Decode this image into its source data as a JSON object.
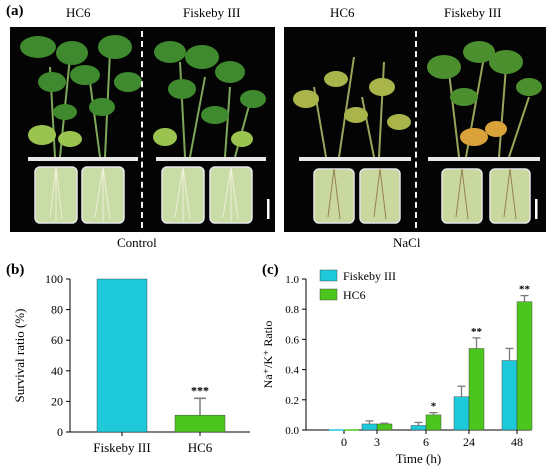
{
  "panels": {
    "a": {
      "letter": "(a)",
      "groups": [
        {
          "label": "Control",
          "plants": [
            "HC6",
            "Fiskeby III"
          ]
        },
        {
          "label": "NaCl",
          "plants": [
            "HC6",
            "Fiskeby III"
          ]
        }
      ]
    },
    "b": {
      "letter": "(b)"
    },
    "c": {
      "letter": "(c)"
    }
  },
  "colors": {
    "fiskeby": "#1ec9da",
    "hc6": "#4dc51f",
    "error_bar": "#7a7a7a",
    "photo_bg": "#040404"
  },
  "chart_data": [
    {
      "panel": "b",
      "type": "bar",
      "categories": [
        "Fiskeby III",
        "HC6"
      ],
      "values": [
        100,
        11
      ],
      "errors": [
        0,
        11
      ],
      "significance": [
        "",
        "***"
      ],
      "colors": [
        "#1ec9da",
        "#4dc51f"
      ],
      "ylabel": "Survival ratio (%)",
      "xlabel": "",
      "ylim": [
        0,
        100
      ],
      "yticks": [
        0,
        20,
        40,
        60,
        80,
        100
      ],
      "grid": false
    },
    {
      "panel": "c",
      "type": "bar",
      "categories": [
        "0",
        "3",
        "6",
        "24",
        "48"
      ],
      "xlabel": "Time (h)",
      "ylabel": "Na⁺/K⁺ Ratio",
      "ylim": [
        0,
        1.0
      ],
      "yticks": [
        "0.0",
        "0.2",
        "0.4",
        "0.6",
        "0.8",
        "1.0"
      ],
      "legend": "top-left",
      "grid": false,
      "series": [
        {
          "name": "Fiskeby III",
          "color": "#1ec9da",
          "values": [
            0.0,
            0.04,
            0.03,
            0.22,
            0.46
          ],
          "errors": [
            0.0,
            0.02,
            0.02,
            0.07,
            0.08
          ],
          "significance": [
            "",
            "",
            "",
            "",
            ""
          ]
        },
        {
          "name": "HC6",
          "color": "#4dc51f",
          "values": [
            0.0,
            0.04,
            0.1,
            0.54,
            0.85
          ],
          "errors": [
            0.0,
            0.005,
            0.015,
            0.07,
            0.04
          ],
          "significance": [
            "",
            "",
            "*",
            "**",
            "**"
          ]
        }
      ]
    }
  ]
}
